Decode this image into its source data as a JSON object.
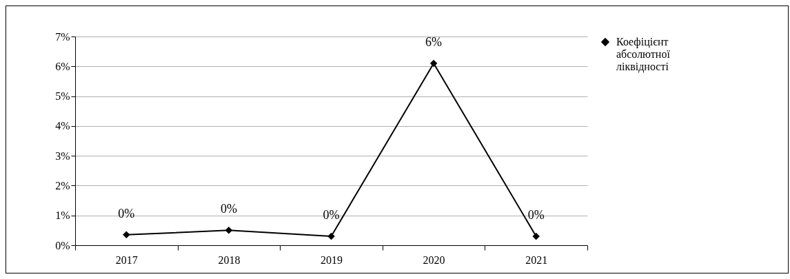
{
  "chart_data": {
    "type": "line",
    "categories": [
      "2017",
      "2018",
      "2019",
      "2020",
      "2021"
    ],
    "series": [
      {
        "name": "Коефіцієнт абсолютної ліквідності",
        "color": "#000000",
        "values": [
          0.35,
          0.5,
          0.3,
          6.1,
          0.3
        ],
        "value_labels": [
          "0%",
          "0%",
          "0%",
          "6%",
          "0%"
        ]
      }
    ],
    "ylim": [
      0,
      7
    ],
    "yticks": [
      {
        "value": 0,
        "label": "0%"
      },
      {
        "value": 1,
        "label": "1%"
      },
      {
        "value": 2,
        "label": "2%"
      },
      {
        "value": 3,
        "label": "3%"
      },
      {
        "value": 4,
        "label": "4%"
      },
      {
        "value": 5,
        "label": "5%"
      },
      {
        "value": 6,
        "label": "6%"
      },
      {
        "value": 7,
        "label": "7%"
      }
    ],
    "grid": "y",
    "legend": "right",
    "marker": "diamond",
    "line_style": "solid"
  }
}
